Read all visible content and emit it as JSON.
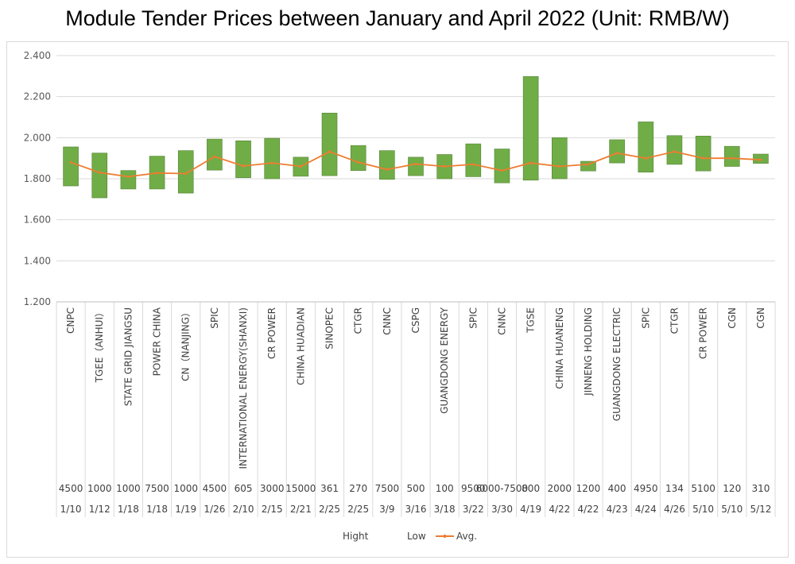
{
  "title": "Module Tender Prices between January and April 2022 (Unit: RMB/W)",
  "colors": {
    "bar": "#70ad47",
    "bar_border": "#548235",
    "avg_line": "#ed7d31",
    "grid": "#d9d9d9",
    "axis": "#bfbfbf"
  },
  "chart_data": {
    "type": "bar",
    "title": "Module Tender Prices between January and April 2022 (Unit: RMB/W)",
    "ylim": [
      1.2,
      2.4
    ],
    "yticks": [
      "1.200",
      "1.400",
      "1.600",
      "1.800",
      "2.000",
      "2.200",
      "2.400"
    ],
    "grid": true,
    "legend_position": "bottom",
    "categories": [
      {
        "company": "CNPC",
        "volume": "4500",
        "date": "1/10"
      },
      {
        "company": "TGEE（ANHUI）",
        "volume": "1000",
        "date": "1/12"
      },
      {
        "company": "STATE GRID JIANGSU",
        "volume": "1000",
        "date": "1/18"
      },
      {
        "company": "POWER CHINA",
        "volume": "7500",
        "date": "1/18"
      },
      {
        "company": "CN（NANJING）",
        "volume": "1000",
        "date": "1/19"
      },
      {
        "company": "SPIC",
        "volume": "4500",
        "date": "1/26"
      },
      {
        "company": "INTERNATIONAL ENERGY(SHANXI)",
        "volume": "605",
        "date": "2/10"
      },
      {
        "company": "CR POWER",
        "volume": "3000",
        "date": "2/15"
      },
      {
        "company": "CHINA HUADIAN",
        "volume": "15000",
        "date": "2/21"
      },
      {
        "company": "SINOPEC",
        "volume": "361",
        "date": "2/25"
      },
      {
        "company": "CTGR",
        "volume": "270",
        "date": "2/25"
      },
      {
        "company": "CNNC",
        "volume": "7500",
        "date": "3/9"
      },
      {
        "company": "CSPG",
        "volume": "500",
        "date": "3/16"
      },
      {
        "company": "GUANGDONG ENERGY",
        "volume": "100",
        "date": "3/18"
      },
      {
        "company": "SPIC",
        "volume": "9500",
        "date": "3/22"
      },
      {
        "company": "CNNC",
        "volume": "6000-7500",
        "date": "3/30"
      },
      {
        "company": "TGSE",
        "volume": "800",
        "date": "4/19"
      },
      {
        "company": "CHINA HUANENG",
        "volume": "2000",
        "date": "4/22"
      },
      {
        "company": "JINNENG HOLDING",
        "volume": "1200",
        "date": "4/22"
      },
      {
        "company": "GUANGDONG ELECTRIC",
        "volume": "400",
        "date": "4/23"
      },
      {
        "company": "SPIC",
        "volume": "4950",
        "date": "4/24"
      },
      {
        "company": "CTGR",
        "volume": "134",
        "date": "4/26"
      },
      {
        "company": "CR POWER",
        "volume": "5100",
        "date": "5/10"
      },
      {
        "company": "CGN",
        "volume": "120",
        "date": "5/10"
      },
      {
        "company": "CGN",
        "volume": "310",
        "date": "5/12"
      }
    ],
    "series": [
      {
        "name": "Hight",
        "values": [
          1.955,
          1.925,
          1.84,
          1.91,
          1.937,
          1.993,
          1.985,
          1.997,
          1.905,
          2.12,
          1.962,
          1.937,
          1.905,
          1.918,
          1.97,
          1.945,
          2.298,
          2.0,
          1.885,
          1.99,
          2.077,
          2.01,
          2.008,
          1.958,
          1.92
        ]
      },
      {
        "name": "Low",
        "values": [
          1.765,
          1.707,
          1.75,
          1.75,
          1.73,
          1.842,
          1.805,
          1.8,
          1.812,
          1.815,
          1.84,
          1.797,
          1.815,
          1.8,
          1.81,
          1.78,
          1.793,
          1.8,
          1.838,
          1.877,
          1.832,
          1.87,
          1.838,
          1.86,
          1.875
        ]
      },
      {
        "name": "Avg.",
        "values": [
          1.88,
          1.83,
          1.81,
          1.828,
          1.825,
          1.908,
          1.862,
          1.877,
          1.86,
          1.932,
          1.88,
          1.845,
          1.872,
          1.86,
          1.87,
          1.84,
          1.877,
          1.86,
          1.87,
          1.925,
          1.9,
          1.932,
          1.9,
          1.9,
          1.892
        ]
      }
    ]
  }
}
